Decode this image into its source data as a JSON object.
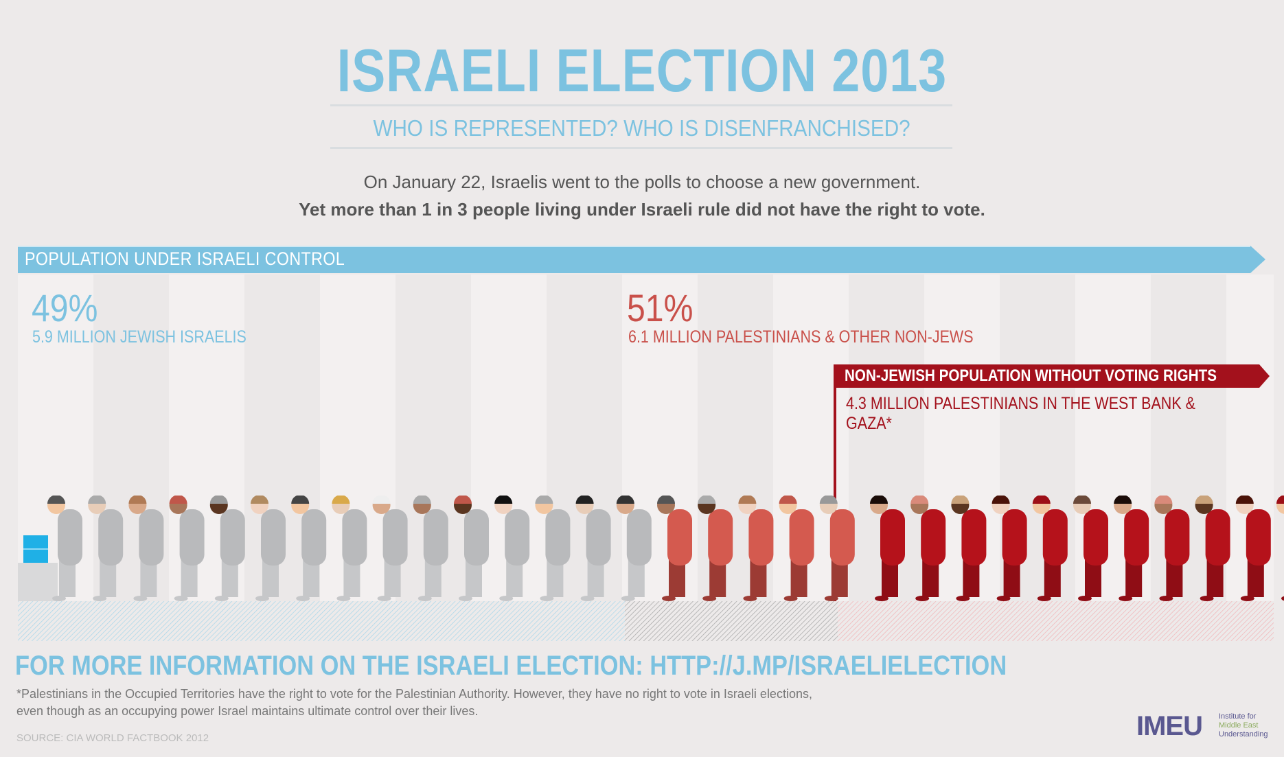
{
  "header": {
    "title": "ISRAELI ELECTION 2013",
    "subtitle": "WHO IS REPRESENTED? WHO IS DISENFRANCHISED?",
    "intro_line1": "On January 22, Israelis went to the polls to choose a new government.",
    "intro_line2": "Yet more than 1 in 3 people living under Israeli rule did not have the right to vote."
  },
  "banner": {
    "label": "POPULATION UNDER ISRAELI CONTROL"
  },
  "groups": {
    "jewish": {
      "percent": "49%",
      "label": "5.9 MILLION JEWISH ISRAELIS"
    },
    "non_jewish": {
      "percent": "51%",
      "label": "6.1 MILLION PALESTINIANS & OTHER NON-JEWS"
    },
    "no_vote": {
      "banner": "NON-JEWISH POPULATION WITHOUT VOTING RIGHTS",
      "label": "4.3 MILLION PALESTINIANS IN THE WEST BANK & GAZA*"
    }
  },
  "colors": {
    "blue": "#7cc2e0",
    "grey_figure": "#b9babc",
    "coral_figure": "#d45a4f",
    "red_figure": "#b5121b",
    "dark_red": "#a3111c"
  },
  "figures": {
    "grey_count": 15,
    "coral_count": 5,
    "red_count": 11
  },
  "footer": {
    "link": "FOR MORE INFORMATION ON THE ISRAELI ELECTION: HTTP://J.MP/ISRAELIELECTION",
    "note_line1": "*Palestinians in the Occupied Territories have the right to vote for the Palestinian Authority. However, they have no right to vote in Israeli elections,",
    "note_line2": "even though as an occupying power Israel maintains ultimate control over their lives.",
    "source": "SOURCE: CIA WORLD FACTBOOK 2012"
  },
  "logo": {
    "mark": "IMEU",
    "line1": "Institute for",
    "line2": "Middle East",
    "line3": "Understanding"
  }
}
